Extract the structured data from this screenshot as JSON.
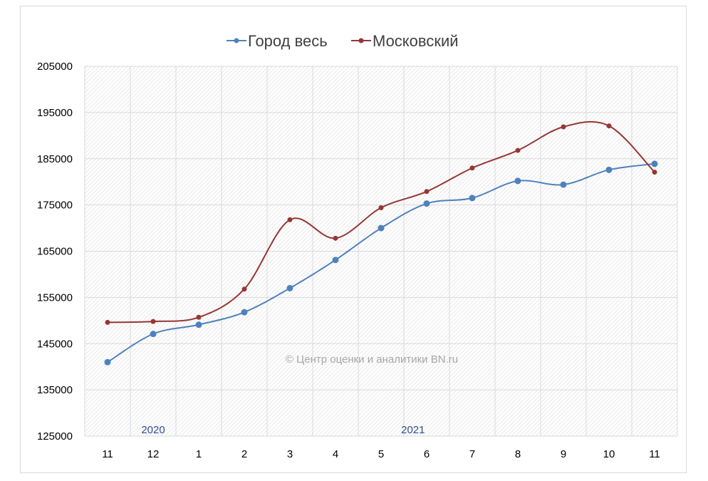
{
  "chart_data": {
    "type": "line",
    "title": "",
    "xlabel": "",
    "ylabel": "",
    "categories": [
      "11",
      "12",
      "1",
      "2",
      "3",
      "4",
      "5",
      "6",
      "7",
      "8",
      "9",
      "10",
      "11"
    ],
    "year_labels": [
      {
        "label": "2020",
        "category_index": 1
      },
      {
        "label": "2021",
        "category_index": 6.7
      }
    ],
    "series": [
      {
        "name": "Город весь",
        "color": "#4f81bd",
        "values": [
          141000,
          147100,
          149100,
          151800,
          157000,
          163100,
          170000,
          175300,
          176500,
          180200,
          179400,
          182600,
          183900
        ]
      },
      {
        "name": "Московский",
        "color": "#953735",
        "values": [
          149600,
          149800,
          150700,
          156800,
          171800,
          167800,
          174400,
          177900,
          183000,
          186800,
          191900,
          192100,
          182100
        ]
      }
    ],
    "ylim": [
      125000,
      205000
    ],
    "yticks": [
      125000,
      135000,
      145000,
      155000,
      165000,
      175000,
      185000,
      195000,
      205000
    ],
    "ytick_labels": [
      "125000",
      "135000",
      "145000",
      "155000",
      "165000",
      "175000",
      "185000",
      "195000",
      "205000"
    ],
    "grid": true,
    "smooth": true,
    "legend_position": "top",
    "watermark": "© Центр оценки и аналитики BN.ru",
    "plot_area_colors": {
      "background": "#f2f2f2",
      "grid": "#d9d9d9"
    }
  }
}
